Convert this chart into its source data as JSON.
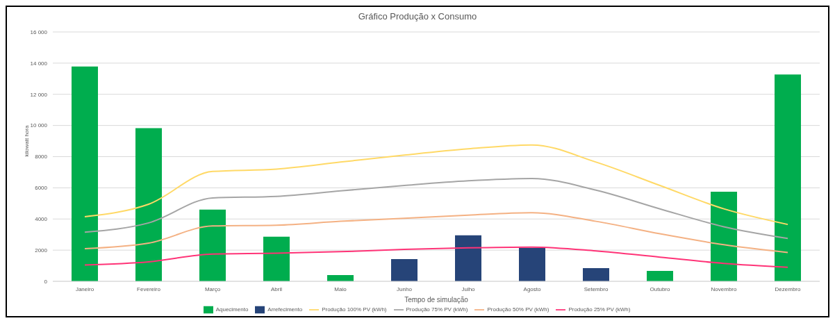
{
  "chart_data": {
    "type": "bar",
    "title": "Gráfico Produção x Consumo",
    "xlabel": "Tempo de simulação",
    "ylabel": "kilowatt hora",
    "categories": [
      "Janeiro",
      "Fevereiro",
      "Março",
      "Abril",
      "Maio",
      "Junho",
      "Julho",
      "Agosto",
      "Setembro",
      "Outubro",
      "Novembro",
      "Dezembro"
    ],
    "stacked": true,
    "series": [
      {
        "name": "Aquecimento",
        "color": "#00ad4e",
        "values": [
          13780,
          9830,
          4600,
          2860,
          400,
          null,
          null,
          null,
          null,
          670,
          5750,
          13270
        ]
      },
      {
        "name": "Arrefecimento",
        "color": "#264478",
        "values": [
          null,
          null,
          null,
          null,
          null,
          1430,
          2950,
          2150,
          850,
          null,
          null,
          null
        ]
      },
      {
        "name": "Produção 100% PV (kWh)",
        "type": "line",
        "color": "#ffd966",
        "values": [
          4150,
          4950,
          7050,
          7200,
          7650,
          8100,
          8500,
          8750,
          7650,
          6150,
          4650,
          3650
        ]
      },
      {
        "name": "Produção 75% PV (kWh)",
        "type": "line",
        "color": "#a5a5a5",
        "values": [
          3150,
          3750,
          5350,
          5450,
          5800,
          6150,
          6450,
          6600,
          5850,
          4650,
          3500,
          2750
        ]
      },
      {
        "name": "Produção 50% PV (kWh)",
        "type": "line",
        "color": "#f4b183",
        "values": [
          2100,
          2450,
          3550,
          3600,
          3850,
          4050,
          4250,
          4400,
          3850,
          3050,
          2350,
          1850
        ]
      },
      {
        "name": "Produção 25% PV (kWh)",
        "type": "line",
        "color": "#ff3377",
        "values": [
          1050,
          1250,
          1750,
          1800,
          1900,
          2050,
          2150,
          2200,
          1950,
          1550,
          1150,
          900
        ]
      }
    ],
    "ylim": [
      0,
      16000
    ],
    "yticks": [
      0,
      2000,
      4000,
      6000,
      8000,
      {
        "value": 10000,
        "label": "10 000"
      },
      {
        "value": 12000,
        "label": "12 000"
      },
      {
        "value": 14000,
        "label": "14 000"
      },
      {
        "value": 16000,
        "label": "16 000"
      }
    ],
    "grid": "y",
    "legend": "bottom",
    "marker": "none",
    "line_style": "solid"
  }
}
